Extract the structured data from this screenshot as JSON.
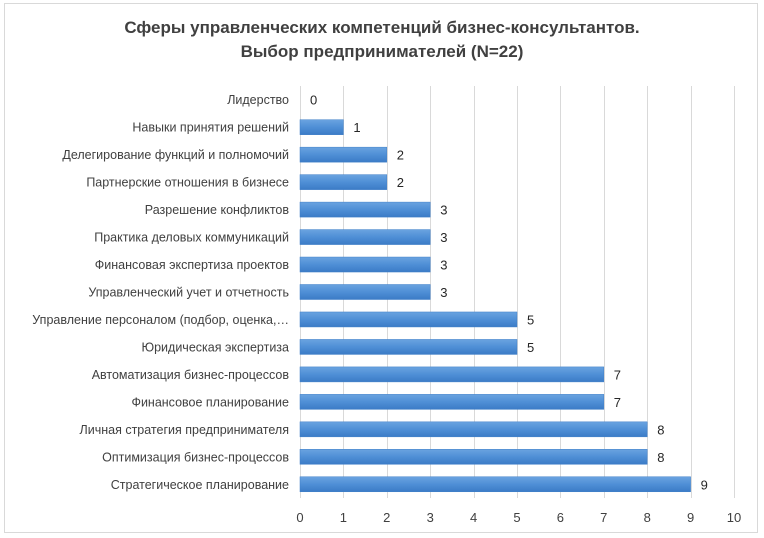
{
  "chart_data": {
    "type": "bar",
    "orientation": "horizontal",
    "title": [
      "Сферы управленческих компетенций бизнес-консультантов.",
      "Выбор предпринимателей (N=22)"
    ],
    "categories": [
      "Лидерство",
      "Навыки принятия решений",
      "Делегирование функций и полномочий",
      "Партнерские отношения в бизнесе",
      "Разрешение конфликтов",
      "Практика деловых коммуникаций",
      "Финансовая экспертиза проектов",
      "Управленческий учет и отчетность",
      "Управление персоналом (подбор, оценка,…",
      "Юридическая экспертиза",
      "Автоматизация бизнес-процессов",
      "Финансовое планирование",
      "Личная стратегия предпринимателя",
      "Оптимизация бизнес-процессов",
      "Стратегическое планирование"
    ],
    "values": [
      0,
      1,
      2,
      2,
      3,
      3,
      3,
      3,
      5,
      5,
      7,
      7,
      8,
      8,
      9
    ],
    "xlim": [
      0,
      10
    ],
    "xticks": [
      "0",
      "1",
      "2",
      "3",
      "4",
      "5",
      "6",
      "7",
      "8",
      "9",
      "10"
    ],
    "xlabel": "",
    "ylabel": "",
    "grid": "vertical",
    "legend": "none",
    "data_labels": true,
    "bar_color": "#4f8fd6"
  }
}
